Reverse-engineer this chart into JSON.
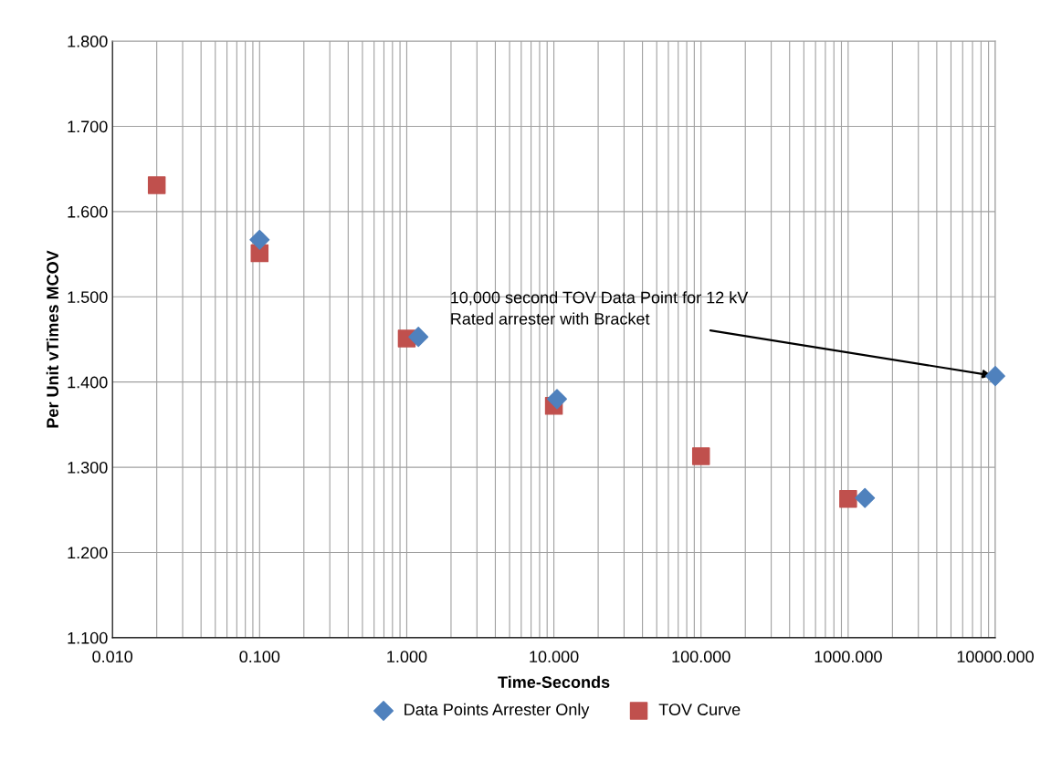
{
  "chart_data": {
    "type": "scatter",
    "xlabel": "Time-Seconds",
    "ylabel": "Per Unit vTimes MCOV",
    "log": "x",
    "grid": true,
    "legend": "bottom",
    "xlim": [
      0.01,
      10000
    ],
    "ylim": [
      1.1,
      1.8
    ],
    "xticks": [
      {
        "value": 0.01,
        "label": "0.010"
      },
      {
        "value": 0.1,
        "label": "0.100"
      },
      {
        "value": 1,
        "label": "1.000"
      },
      {
        "value": 10,
        "label": "10.000"
      },
      {
        "value": 100,
        "label": "100.000"
      },
      {
        "value": 1000,
        "label": "1000.000"
      },
      {
        "value": 10000,
        "label": "10000.000"
      }
    ],
    "yticks": [
      {
        "value": 1.1,
        "label": "1.100"
      },
      {
        "value": 1.2,
        "label": "1.200"
      },
      {
        "value": 1.3,
        "label": "1.300"
      },
      {
        "value": 1.4,
        "label": "1.400"
      },
      {
        "value": 1.5,
        "label": "1.500"
      },
      {
        "value": 1.6,
        "label": "1.600"
      },
      {
        "value": 1.7,
        "label": "1.700"
      },
      {
        "value": 1.8,
        "label": "1.800"
      }
    ],
    "series": [
      {
        "name": "Data Points Arrester Only",
        "color": "#4f81bd",
        "marker": "diamond",
        "x": [
          0.1,
          1.2,
          10.5,
          1300,
          10000
        ],
        "values": [
          1.567,
          1.453,
          1.38,
          1.264,
          1.407
        ]
      },
      {
        "name": "TOV Curve",
        "color": "#c0504d",
        "marker": "square",
        "x": [
          0.02,
          0.1,
          1,
          10,
          100,
          1000
        ],
        "values": [
          1.631,
          1.551,
          1.451,
          1.372,
          1.313,
          1.263
        ]
      }
    ],
    "annotations": [
      {
        "text": "10,000 second TOV Data Point for 12 kV\nRated arrester with Bracket",
        "x": 10000,
        "y": 1.407
      }
    ]
  }
}
